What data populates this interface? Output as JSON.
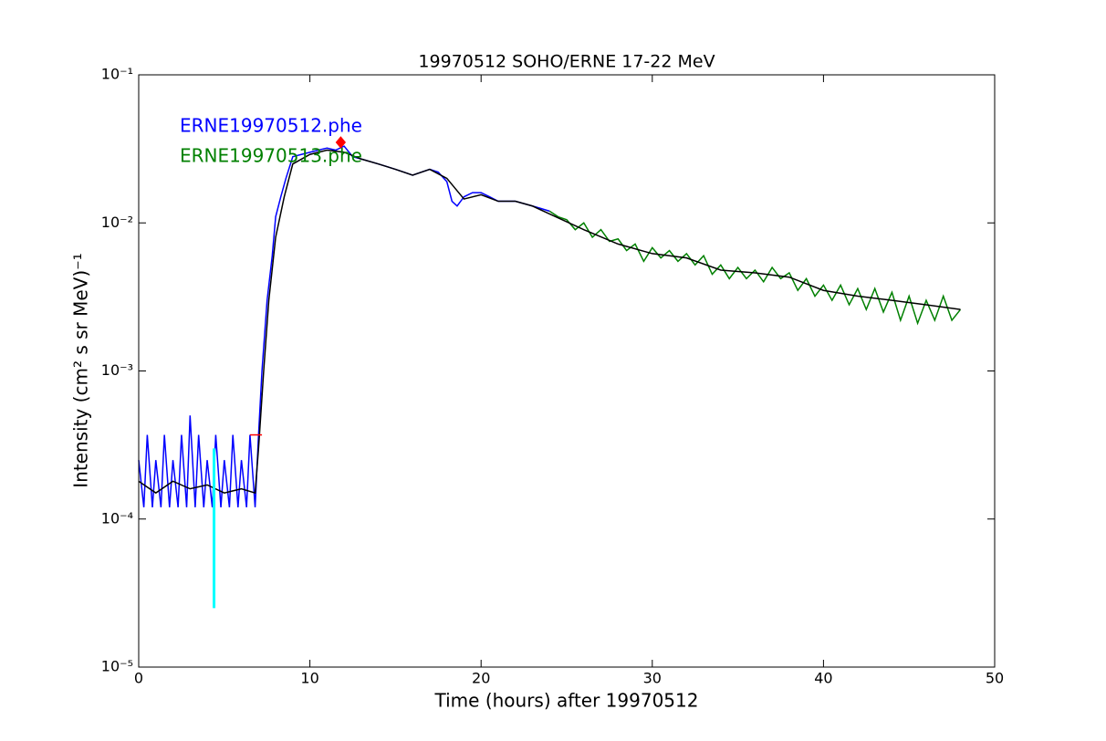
{
  "chart_data": {
    "type": "line",
    "title": "19970512 SOHO/ERNE 17-22 MeV",
    "xlabel": "Time (hours) after 19970512",
    "ylabel": "Intensity (cm² s sr MeV)⁻¹",
    "xlim": [
      0,
      50
    ],
    "xticks": [
      0,
      10,
      20,
      30,
      40,
      50
    ],
    "ylim": [
      1e-05,
      0.1
    ],
    "yscale": "log",
    "yticks": [
      {
        "value": 1e-05,
        "label": "10⁻⁵"
      },
      {
        "value": 0.0001,
        "label": "10⁻⁴"
      },
      {
        "value": 0.001,
        "label": "10⁻³"
      },
      {
        "value": 0.01,
        "label": "10⁻²"
      },
      {
        "value": 0.1,
        "label": "10⁻¹"
      }
    ],
    "legend": "upper left",
    "series": [
      {
        "name": "ERNE19970512.phe",
        "color": "#0000ff",
        "style": "line",
        "x": [
          0,
          0.3,
          0.5,
          0.8,
          1,
          1.3,
          1.5,
          1.8,
          2,
          2.3,
          2.5,
          2.8,
          3,
          3.3,
          3.5,
          3.8,
          4,
          4.3,
          4.5,
          4.8,
          5,
          5.3,
          5.5,
          5.8,
          6,
          6.3,
          6.5,
          6.8,
          7,
          7.2,
          7.5,
          7.8,
          8,
          8.3,
          8.6,
          9,
          9.5,
          10,
          10.5,
          11,
          11.5,
          12,
          12.5,
          13,
          13.5,
          14,
          14.5,
          15,
          15.5,
          16,
          16.5,
          17,
          17.5,
          18,
          18.3,
          18.6,
          19,
          19.5,
          20,
          20.5,
          21,
          21.5,
          22,
          22.5,
          23,
          23.5,
          24
        ],
        "values": [
          0.00025,
          0.00012,
          0.00037,
          0.00012,
          0.00025,
          0.00012,
          0.00037,
          0.00012,
          0.00025,
          0.00012,
          0.00037,
          0.00012,
          0.0005,
          0.00012,
          0.00037,
          0.00012,
          0.00025,
          0.00012,
          0.00037,
          0.00012,
          0.00025,
          0.00012,
          0.00037,
          0.00012,
          0.00025,
          0.00012,
          0.00037,
          0.00012,
          0.00037,
          0.001,
          0.003,
          0.006,
          0.011,
          0.015,
          0.02,
          0.028,
          0.029,
          0.03,
          0.031,
          0.032,
          0.031,
          0.033,
          0.028,
          0.027,
          0.026,
          0.025,
          0.024,
          0.023,
          0.022,
          0.021,
          0.022,
          0.023,
          0.022,
          0.019,
          0.014,
          0.013,
          0.015,
          0.016,
          0.016,
          0.015,
          0.014,
          0.014,
          0.014,
          0.0135,
          0.013,
          0.0125,
          0.012
        ]
      },
      {
        "name": "ERNE19970513.phe",
        "color": "#008000",
        "style": "line",
        "x": [
          24,
          24.5,
          25,
          25.5,
          26,
          26.5,
          27,
          27.5,
          28,
          28.5,
          29,
          29.5,
          30,
          30.5,
          31,
          31.5,
          32,
          32.5,
          33,
          33.5,
          34,
          34.5,
          35,
          35.5,
          36,
          36.5,
          37,
          37.5,
          38,
          38.5,
          39,
          39.5,
          40,
          40.5,
          41,
          41.5,
          42,
          42.5,
          43,
          43.5,
          44,
          44.5,
          45,
          45.5,
          46,
          46.5,
          47,
          47.5,
          48
        ],
        "values": [
          0.012,
          0.011,
          0.0105,
          0.009,
          0.01,
          0.008,
          0.009,
          0.0075,
          0.0078,
          0.0065,
          0.0072,
          0.0055,
          0.0068,
          0.0058,
          0.0065,
          0.0055,
          0.0062,
          0.0052,
          0.006,
          0.0045,
          0.0052,
          0.0042,
          0.005,
          0.0042,
          0.0048,
          0.004,
          0.005,
          0.0042,
          0.0046,
          0.0035,
          0.0042,
          0.0032,
          0.0038,
          0.003,
          0.0038,
          0.0028,
          0.0036,
          0.0026,
          0.0036,
          0.0025,
          0.0034,
          0.0022,
          0.0032,
          0.0021,
          0.003,
          0.0022,
          0.0032,
          0.0022,
          0.0026
        ]
      },
      {
        "color": "#000000",
        "style": "line",
        "x": [
          0,
          1,
          2,
          3,
          4,
          5,
          6,
          6.8,
          7,
          7.3,
          7.6,
          8,
          8.5,
          9,
          10,
          11,
          12,
          13,
          14,
          15,
          16,
          17,
          18,
          19,
          20,
          21,
          22,
          23,
          24,
          26,
          28,
          30,
          32,
          34,
          36,
          38,
          40,
          42,
          44,
          46,
          48
        ],
        "values": [
          0.00018,
          0.00015,
          0.00018,
          0.00016,
          0.00017,
          0.00015,
          0.00016,
          0.00015,
          0.0003,
          0.001,
          0.003,
          0.008,
          0.015,
          0.025,
          0.029,
          0.031,
          0.03,
          0.027,
          0.025,
          0.023,
          0.021,
          0.023,
          0.02,
          0.0145,
          0.0155,
          0.014,
          0.014,
          0.013,
          0.0115,
          0.009,
          0.0072,
          0.0062,
          0.0058,
          0.0048,
          0.0046,
          0.0043,
          0.0035,
          0.0032,
          0.003,
          0.0028,
          0.0026
        ]
      },
      {
        "color": "#00ffff",
        "style": "line",
        "x": [
          4.4,
          4.4
        ],
        "values": [
          2.5e-05,
          0.0003
        ]
      },
      {
        "color": "#ff0000",
        "style": "line",
        "x": [
          6.5,
          7.2
        ],
        "values": [
          0.00037,
          0.00037
        ]
      },
      {
        "color": "#ff0000",
        "style": "marker",
        "x": [
          11.8
        ],
        "values": [
          0.035
        ]
      }
    ]
  }
}
